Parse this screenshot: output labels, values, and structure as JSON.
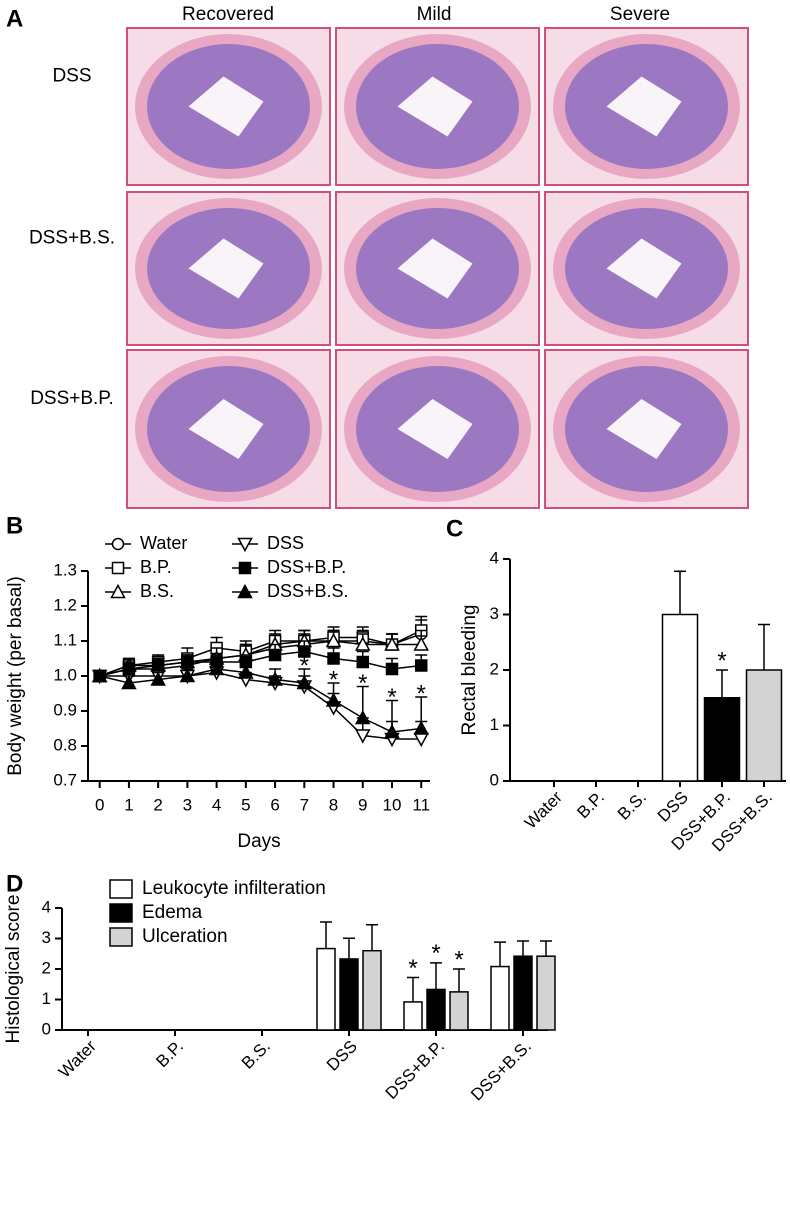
{
  "panel_a": {
    "label": "A",
    "columns": [
      "Recovered",
      "Mild",
      "Severe"
    ],
    "rows": [
      "DSS",
      "DSS+B.S.",
      "DSS+B.P."
    ]
  },
  "chart_data": [
    {
      "panel": "B",
      "type": "line",
      "xlabel": "Days",
      "ylabel": "Body weight (per basal)",
      "x": [
        0,
        1,
        2,
        3,
        4,
        5,
        6,
        7,
        8,
        9,
        10,
        11
      ],
      "xlim": [
        -0.4,
        11.3
      ],
      "xticks": [
        0,
        1,
        2,
        3,
        4,
        5,
        6,
        7,
        8,
        9,
        10,
        11
      ],
      "ylim": [
        0.7,
        1.3
      ],
      "yticks": [
        0.7,
        0.8,
        0.9,
        {
          "value": 1,
          "label": "1.0"
        },
        1.1,
        1.2,
        1.3
      ],
      "series": [
        {
          "name": "Water",
          "color": "#000",
          "marker": "circle",
          "filled": false,
          "values": [
            1.0,
            1.02,
            1.02,
            1.03,
            1.05,
            1.06,
            1.08,
            1.09,
            1.1,
            1.1,
            1.09,
            1.12
          ],
          "errors": [
            0.01,
            0.02,
            0.02,
            0.02,
            0.03,
            0.03,
            0.03,
            0.03,
            0.03,
            0.03,
            0.03,
            0.04
          ]
        },
        {
          "name": "B.P.",
          "color": "#000",
          "marker": "square",
          "filled": false,
          "values": [
            1.0,
            1.03,
            1.04,
            1.05,
            1.08,
            1.07,
            1.1,
            1.1,
            1.11,
            1.11,
            1.09,
            1.13
          ],
          "errors": [
            0.01,
            0.02,
            0.02,
            0.03,
            0.03,
            0.03,
            0.03,
            0.03,
            0.03,
            0.03,
            0.03,
            0.04
          ]
        },
        {
          "name": "B.S.",
          "color": "#000",
          "marker": "triangle-up",
          "filled": false,
          "values": [
            1.0,
            1.03,
            1.03,
            1.04,
            1.05,
            1.06,
            1.09,
            1.1,
            1.1,
            1.09,
            1.09,
            1.09
          ],
          "errors": [
            0.01,
            0.02,
            0.02,
            0.02,
            0.03,
            0.03,
            0.03,
            0.03,
            0.03,
            0.03,
            0.03,
            0.04
          ]
        },
        {
          "name": "DSS",
          "color": "#000",
          "marker": "triangle-down",
          "filled": false,
          "values": [
            1.0,
            1.0,
            1.0,
            1.0,
            1.01,
            0.99,
            0.98,
            0.97,
            0.91,
            0.83,
            0.82,
            0.82
          ],
          "errors": [
            0.01,
            0.02,
            0.02,
            0.02,
            0.02,
            0.02,
            0.02,
            0.03,
            0.04,
            0.05,
            0.05,
            0.05
          ]
        },
        {
          "name": "DSS+B.P.",
          "color": "#000",
          "marker": "square",
          "filled": true,
          "values": [
            1.0,
            1.02,
            1.03,
            1.04,
            1.04,
            1.04,
            1.06,
            1.07,
            1.05,
            1.04,
            1.02,
            1.03
          ],
          "errors": [
            0.01,
            0.02,
            0.02,
            0.02,
            0.02,
            0.02,
            0.03,
            0.03,
            0.03,
            0.03,
            0.03,
            0.03
          ]
        },
        {
          "name": "DSS+B.S.",
          "color": "#000",
          "marker": "triangle-up",
          "filled": true,
          "values": [
            1.0,
            0.98,
            0.99,
            1.0,
            1.02,
            1.01,
            0.99,
            0.98,
            0.93,
            0.88,
            0.84,
            0.85
          ],
          "errors": [
            0.01,
            0.02,
            0.02,
            0.02,
            0.02,
            0.02,
            0.03,
            0.04,
            0.05,
            0.09,
            0.09,
            0.09
          ]
        }
      ],
      "annotations": [
        {
          "text": "*",
          "x": 7,
          "series": "DSS+B.S."
        },
        {
          "text": "*",
          "x": 8,
          "series": "DSS+B.S."
        },
        {
          "text": "*",
          "x": 9,
          "series": "DSS+B.S."
        },
        {
          "text": "*",
          "x": 10,
          "series": "DSS+B.S."
        },
        {
          "text": "*",
          "x": 11,
          "series": "DSS+B.S."
        }
      ]
    },
    {
      "panel": "C",
      "type": "bar",
      "ylabel": "Rectal bleeding",
      "categories": [
        "Water",
        "B.P.",
        "B.S.",
        "DSS",
        "DSS+B.P.",
        "DSS+B.S."
      ],
      "values": [
        0,
        0,
        0,
        3,
        1.5,
        2
      ],
      "errors": [
        null,
        null,
        null,
        0.78,
        0.5,
        0.82
      ],
      "colors": [
        "#ffffff",
        "#ffffff",
        "#ffffff",
        "#ffffff",
        "#000000",
        "#d3d3d3"
      ],
      "ylim": [
        0,
        4
      ],
      "yticks": [
        0,
        1,
        2,
        3,
        4
      ],
      "annotations": [
        {
          "text": "*",
          "category": "DSS+B.P."
        }
      ]
    },
    {
      "panel": "D",
      "type": "grouped_bar",
      "ylabel": "Histological score",
      "categories": [
        "Water",
        "B.P.",
        "B.S.",
        "DSS",
        "DSS+B.P.",
        "DSS+B.S."
      ],
      "series": [
        {
          "name": "Leukocyte infilteration",
          "color": "#ffffff",
          "values": [
            0,
            0,
            0,
            2.67,
            0.92,
            2.08
          ],
          "errors": [
            null,
            null,
            null,
            0.87,
            0.8,
            0.8
          ]
        },
        {
          "name": "Edema",
          "color": "#000000",
          "values": [
            0,
            0,
            0,
            2.33,
            1.33,
            2.42
          ],
          "errors": [
            null,
            null,
            null,
            0.68,
            0.87,
            0.5
          ]
        },
        {
          "name": "Ulceration",
          "color": "#d3d3d3",
          "values": [
            0,
            0,
            0,
            2.6,
            1.25,
            2.42
          ],
          "errors": [
            null,
            null,
            null,
            0.85,
            0.75,
            0.5
          ]
        }
      ],
      "ylim": [
        0,
        4
      ],
      "yticks": [
        0,
        1,
        2,
        3,
        4
      ],
      "annotations": [
        {
          "text": "*",
          "category": "DSS+B.P.",
          "series": "Leukocyte infilteration"
        },
        {
          "text": "*",
          "category": "DSS+B.P.",
          "series": "Edema"
        },
        {
          "text": "*",
          "category": "DSS+B.P.",
          "series": "Ulceration"
        }
      ]
    }
  ]
}
